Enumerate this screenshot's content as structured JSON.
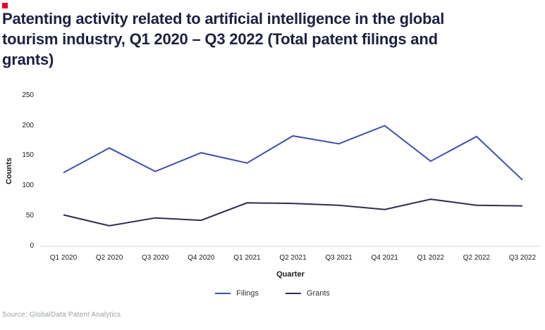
{
  "brand": {
    "accent_color": "#e4002b"
  },
  "title": "Patenting activity related to artificial intelligence in the global tourism industry, Q1 2020 – Q3 2022 (Total patent filings and grants)",
  "source": "Source: GlobalData Patent Analytics",
  "chart_data": {
    "type": "line",
    "title": "Patenting activity related to artificial intelligence in the global tourism industry, Q1 2020 – Q3 2022 (Total patent filings and grants)",
    "categories": [
      "Q1 2020",
      "Q2 2020",
      "Q3 2020",
      "Q4 2020",
      "Q1 2021",
      "Q2 2021",
      "Q3 2021",
      "Q4 2021",
      "Q1 2022",
      "Q2 2022",
      "Q3 2022"
    ],
    "series": [
      {
        "name": "Filings",
        "color": "#434db4",
        "values": [
          122,
          163,
          124,
          155,
          138,
          183,
          170,
          200,
          141,
          182,
          110
        ]
      },
      {
        "name": "Grants",
        "color": "#2b2e4f",
        "values": [
          52,
          34,
          47,
          43,
          72,
          71,
          68,
          61,
          78,
          68,
          67
        ]
      }
    ],
    "xlabel": "Quarter",
    "ylabel": "Counts",
    "ylim": [
      0,
      250
    ],
    "yticks": [
      0,
      50,
      100,
      150,
      200,
      250
    ],
    "grid": "baseline-only",
    "baseline_color": "#d8d8d8",
    "legend_position": "bottom"
  }
}
